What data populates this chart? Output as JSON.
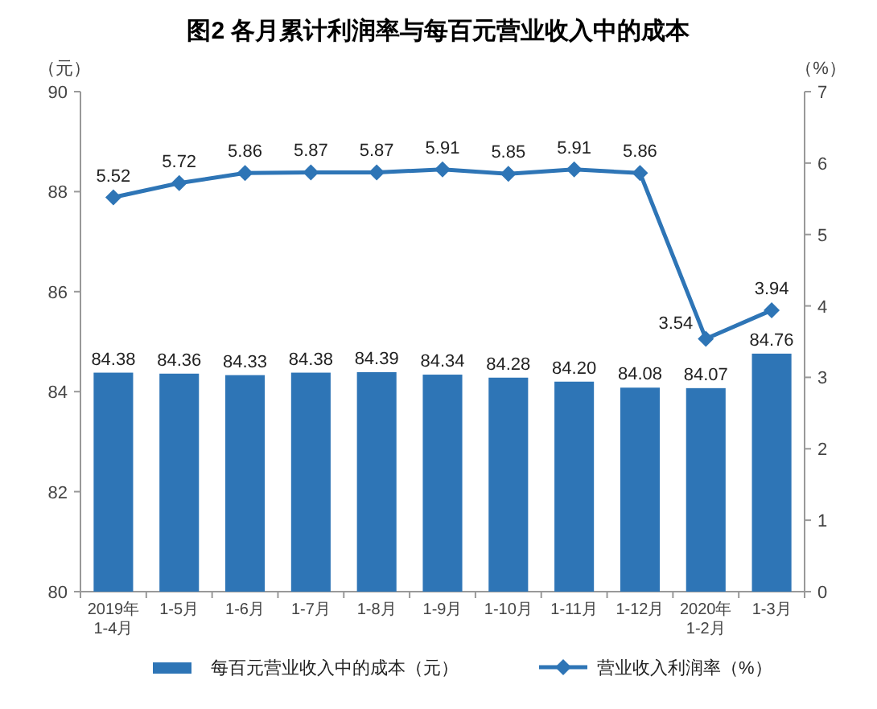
{
  "chart_data": {
    "type": "bar",
    "title": "图2  各月累计利润率与每百元营业收入中的成本",
    "categories": [
      "2019年\n1-4月",
      "1-5月",
      "1-6月",
      "1-7月",
      "1-8月",
      "1-9月",
      "1-10月",
      "1-11月",
      "1-12月",
      "2020年\n1-2月",
      "1-3月"
    ],
    "ylabel": "（元）",
    "y2label": "（%）",
    "ylim": [
      80,
      90
    ],
    "yticks": [
      80,
      82,
      84,
      86,
      88,
      90
    ],
    "y2lim": [
      0,
      7
    ],
    "y2ticks": [
      0,
      1,
      2,
      3,
      4,
      5,
      6,
      7
    ],
    "series": [
      {
        "name": "每百元营业收入中的成本（元）",
        "color": "#2e75b6",
        "values": [
          84.38,
          84.36,
          84.33,
          84.38,
          84.39,
          84.34,
          84.28,
          84.2,
          84.08,
          84.07,
          84.76
        ],
        "value_labels": [
          "84.38",
          "84.36",
          "84.33",
          "84.38",
          "84.39",
          "84.34",
          "84.28",
          "84.20",
          "84.08",
          "84.07",
          "84.76"
        ]
      },
      {
        "name": "营业收入利润率（%）",
        "type": "line",
        "axis": "y2",
        "color": "#2e75b6",
        "marker": "diamond",
        "values": [
          5.52,
          5.72,
          5.86,
          5.87,
          5.87,
          5.91,
          5.85,
          5.91,
          5.86,
          3.54,
          3.94
        ]
      }
    ],
    "data_labels": true,
    "legend": "bottom"
  }
}
